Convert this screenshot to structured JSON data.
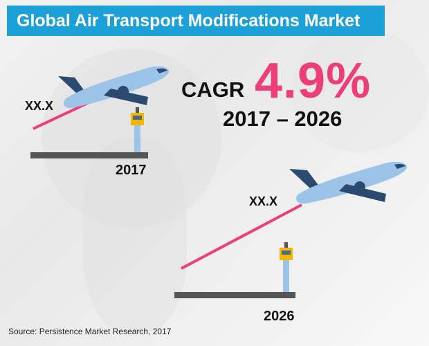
{
  "title": "Global Air Transport Modifications Market",
  "cagr": {
    "label": "CAGR",
    "value": "4.9%",
    "period": "2017 – 2026"
  },
  "markers": [
    {
      "value_label": "XX.X",
      "year": "2017"
    },
    {
      "value_label": "XX.X",
      "year": "2026"
    }
  ],
  "source": "Source: Persistence Market Research, 2017",
  "colors": {
    "title_bar": "#1ba0d8",
    "accent": "#ee3e79",
    "plane_body": "#9cc3e8",
    "plane_tail": "#2c4a70",
    "platform": "#555555",
    "tower": "#f2b705"
  }
}
